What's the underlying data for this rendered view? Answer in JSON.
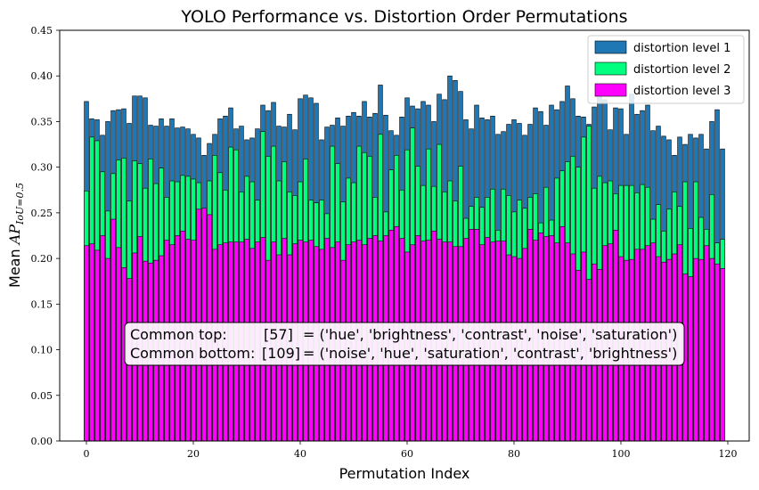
{
  "chart_data": {
    "type": "bar",
    "title": "YOLO Performance vs. Distortion Order Permutations",
    "xlabel": "Permutation Index",
    "ylabel_main": "Mean ",
    "ylabel_math": "AP",
    "ylabel_sub": "IoU=0.5",
    "xlim": [
      -5,
      124
    ],
    "ylim": [
      0,
      0.45
    ],
    "xticks": [
      0,
      20,
      40,
      60,
      80,
      100,
      120
    ],
    "yticks": [
      "0.00",
      "0.05",
      "0.10",
      "0.15",
      "0.20",
      "0.25",
      "0.30",
      "0.35",
      "0.40",
      "0.45"
    ],
    "legend_position": "upper-right",
    "series": [
      {
        "name": "distortion level 1",
        "color": "#1f77b4",
        "values": [
          0.372,
          0.353,
          0.352,
          0.335,
          0.35,
          0.362,
          0.363,
          0.364,
          0.348,
          0.378,
          0.378,
          0.376,
          0.346,
          0.345,
          0.353,
          0.345,
          0.353,
          0.343,
          0.344,
          0.342,
          0.336,
          0.332,
          0.313,
          0.326,
          0.336,
          0.353,
          0.356,
          0.365,
          0.342,
          0.345,
          0.33,
          0.332,
          0.342,
          0.368,
          0.362,
          0.371,
          0.345,
          0.344,
          0.358,
          0.341,
          0.375,
          0.379,
          0.376,
          0.37,
          0.33,
          0.344,
          0.346,
          0.354,
          0.345,
          0.356,
          0.36,
          0.356,
          0.372,
          0.355,
          0.359,
          0.39,
          0.357,
          0.34,
          0.335,
          0.355,
          0.376,
          0.367,
          0.364,
          0.372,
          0.368,
          0.35,
          0.38,
          0.374,
          0.4,
          0.395,
          0.383,
          0.352,
          0.342,
          0.368,
          0.354,
          0.352,
          0.356,
          0.336,
          0.339,
          0.347,
          0.352,
          0.348,
          0.335,
          0.347,
          0.365,
          0.361,
          0.346,
          0.368,
          0.363,
          0.372,
          0.389,
          0.375,
          0.356,
          0.355,
          0.347,
          0.366,
          0.384,
          0.374,
          0.341,
          0.365,
          0.364,
          0.336,
          0.38,
          0.358,
          0.362,
          0.368,
          0.34,
          0.345,
          0.334,
          0.33,
          0.313,
          0.333,
          0.325,
          0.336,
          0.332,
          0.336,
          0.32,
          0.35,
          0.363,
          0.32
        ]
      },
      {
        "name": "distortion level 2",
        "color": "#00ff7f",
        "values": [
          0.274,
          0.333,
          0.329,
          0.295,
          0.252,
          0.293,
          0.308,
          0.31,
          0.263,
          0.307,
          0.304,
          0.277,
          0.309,
          0.282,
          0.299,
          0.267,
          0.285,
          0.284,
          0.291,
          0.29,
          0.287,
          0.283,
          0.244,
          0.285,
          0.313,
          0.294,
          0.275,
          0.322,
          0.319,
          0.273,
          0.29,
          0.284,
          0.264,
          0.339,
          0.312,
          0.323,
          0.285,
          0.306,
          0.273,
          0.269,
          0.284,
          0.309,
          0.264,
          0.261,
          0.264,
          0.249,
          0.323,
          0.304,
          0.262,
          0.288,
          0.283,
          0.323,
          0.316,
          0.312,
          0.267,
          0.336,
          0.251,
          0.297,
          0.313,
          0.275,
          0.319,
          0.343,
          0.301,
          0.28,
          0.32,
          0.279,
          0.325,
          0.273,
          0.285,
          0.263,
          0.301,
          0.244,
          0.257,
          0.267,
          0.256,
          0.267,
          0.276,
          0.231,
          0.276,
          0.269,
          0.251,
          0.264,
          0.255,
          0.267,
          0.271,
          0.239,
          0.278,
          0.242,
          0.288,
          0.296,
          0.306,
          0.312,
          0.3,
          0.333,
          0.345,
          0.277,
          0.29,
          0.283,
          0.285,
          0.271,
          0.28,
          0.28,
          0.28,
          0.272,
          0.281,
          0.278,
          0.243,
          0.259,
          0.23,
          0.254,
          0.273,
          0.257,
          0.284,
          0.233,
          0.284,
          0.245,
          0.232,
          0.27,
          0.217,
          0.221
        ]
      },
      {
        "name": "distortion level 3",
        "color": "#ff00ff",
        "values": [
          0.214,
          0.216,
          0.209,
          0.225,
          0.2,
          0.243,
          0.212,
          0.19,
          0.178,
          0.206,
          0.224,
          0.197,
          0.195,
          0.198,
          0.203,
          0.22,
          0.215,
          0.225,
          0.23,
          0.221,
          0.22,
          0.254,
          0.255,
          0.248,
          0.21,
          0.215,
          0.217,
          0.218,
          0.218,
          0.218,
          0.221,
          0.211,
          0.218,
          0.223,
          0.198,
          0.218,
          0.204,
          0.222,
          0.204,
          0.216,
          0.22,
          0.218,
          0.22,
          0.213,
          0.21,
          0.222,
          0.212,
          0.218,
          0.198,
          0.215,
          0.218,
          0.22,
          0.215,
          0.222,
          0.225,
          0.219,
          0.225,
          0.231,
          0.235,
          0.222,
          0.207,
          0.215,
          0.225,
          0.219,
          0.22,
          0.23,
          0.221,
          0.218,
          0.218,
          0.213,
          0.213,
          0.222,
          0.232,
          0.232,
          0.215,
          0.223,
          0.218,
          0.219,
          0.219,
          0.204,
          0.202,
          0.2,
          0.211,
          0.232,
          0.22,
          0.228,
          0.224,
          0.225,
          0.217,
          0.235,
          0.217,
          0.205,
          0.187,
          0.207,
          0.177,
          0.194,
          0.188,
          0.214,
          0.216,
          0.231,
          0.202,
          0.198,
          0.199,
          0.21,
          0.21,
          0.214,
          0.217,
          0.202,
          0.196,
          0.199,
          0.205,
          0.215,
          0.183,
          0.18,
          0.2,
          0.199,
          0.214,
          0.2,
          0.194,
          0.189
        ]
      }
    ],
    "annotation": {
      "line1_label": "Common top:",
      "line1_index": "[57]",
      "line1_eq": "= ('hue', 'brightness', 'contrast', 'noise', 'saturation')",
      "line2_label": "Common bottom:",
      "line2_index": "[109]",
      "line2_eq": "= ('noise', 'hue', 'saturation', 'contrast', 'brightness')"
    }
  }
}
